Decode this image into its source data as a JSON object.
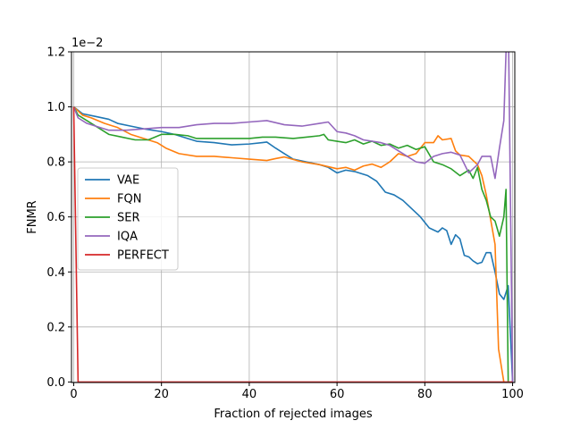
{
  "chart_data": {
    "type": "line",
    "title": "",
    "xlabel": "Fraction of rejected images",
    "ylabel": "FNMR",
    "offset_text": "1e−2",
    "xlim": [
      -0.5,
      100.5
    ],
    "ylim": [
      -0.002,
      1.2
    ],
    "xticks": [
      0,
      20,
      40,
      60,
      80,
      100
    ],
    "yticks": [
      0.0,
      0.2,
      0.4,
      0.6,
      0.8,
      1.0,
      1.2
    ],
    "xtick_labels": [
      "0",
      "20",
      "40",
      "60",
      "80",
      "100"
    ],
    "ytick_labels": [
      "0.0",
      "0.2",
      "0.4",
      "0.6",
      "0.8",
      "1.0",
      "1.2"
    ],
    "grid": true,
    "legend_position": "center-left",
    "series": [
      {
        "name": "VAE",
        "color": "#1f77b4",
        "points": [
          [
            0,
            1.0
          ],
          [
            2,
            0.975
          ],
          [
            5,
            0.965
          ],
          [
            8,
            0.955
          ],
          [
            10,
            0.94
          ],
          [
            13,
            0.93
          ],
          [
            16,
            0.92
          ],
          [
            20,
            0.91
          ],
          [
            23,
            0.9
          ],
          [
            26,
            0.885
          ],
          [
            28,
            0.875
          ],
          [
            32,
            0.87
          ],
          [
            36,
            0.862
          ],
          [
            40,
            0.865
          ],
          [
            43,
            0.87
          ],
          [
            44,
            0.872
          ],
          [
            46,
            0.85
          ],
          [
            48,
            0.83
          ],
          [
            50,
            0.81
          ],
          [
            53,
            0.8
          ],
          [
            56,
            0.79
          ],
          [
            58,
            0.78
          ],
          [
            60,
            0.76
          ],
          [
            62,
            0.77
          ],
          [
            64,
            0.765
          ],
          [
            67,
            0.75
          ],
          [
            69,
            0.73
          ],
          [
            71,
            0.69
          ],
          [
            73,
            0.68
          ],
          [
            75,
            0.66
          ],
          [
            77,
            0.63
          ],
          [
            79,
            0.6
          ],
          [
            81,
            0.56
          ],
          [
            83,
            0.545
          ],
          [
            84,
            0.56
          ],
          [
            85,
            0.55
          ],
          [
            86,
            0.5
          ],
          [
            87,
            0.535
          ],
          [
            88,
            0.52
          ],
          [
            89,
            0.46
          ],
          [
            90,
            0.455
          ],
          [
            91,
            0.44
          ],
          [
            92,
            0.43
          ],
          [
            93,
            0.435
          ],
          [
            94,
            0.47
          ],
          [
            95,
            0.47
          ],
          [
            96,
            0.4
          ],
          [
            97,
            0.32
          ],
          [
            98,
            0.3
          ],
          [
            99,
            0.35
          ],
          [
            100,
            0.0
          ]
        ]
      },
      {
        "name": "FQN",
        "color": "#ff7f0e",
        "points": [
          [
            0,
            1.0
          ],
          [
            2,
            0.97
          ],
          [
            4,
            0.96
          ],
          [
            7,
            0.94
          ],
          [
            10,
            0.925
          ],
          [
            13,
            0.9
          ],
          [
            16,
            0.885
          ],
          [
            19,
            0.87
          ],
          [
            21,
            0.85
          ],
          [
            24,
            0.83
          ],
          [
            28,
            0.82
          ],
          [
            32,
            0.82
          ],
          [
            36,
            0.815
          ],
          [
            40,
            0.81
          ],
          [
            44,
            0.805
          ],
          [
            46,
            0.812
          ],
          [
            48,
            0.818
          ],
          [
            52,
            0.8
          ],
          [
            56,
            0.79
          ],
          [
            60,
            0.775
          ],
          [
            62,
            0.78
          ],
          [
            64,
            0.77
          ],
          [
            66,
            0.785
          ],
          [
            68,
            0.792
          ],
          [
            70,
            0.78
          ],
          [
            72,
            0.8
          ],
          [
            74,
            0.83
          ],
          [
            76,
            0.82
          ],
          [
            78,
            0.83
          ],
          [
            80,
            0.87
          ],
          [
            82,
            0.87
          ],
          [
            83,
            0.895
          ],
          [
            84,
            0.88
          ],
          [
            86,
            0.885
          ],
          [
            87,
            0.84
          ],
          [
            88,
            0.825
          ],
          [
            90,
            0.82
          ],
          [
            91,
            0.805
          ],
          [
            92,
            0.79
          ],
          [
            93,
            0.75
          ],
          [
            94,
            0.68
          ],
          [
            95,
            0.59
          ],
          [
            96,
            0.5
          ],
          [
            96.8,
            0.12
          ],
          [
            98,
            0.0
          ]
        ]
      },
      {
        "name": "SER",
        "color": "#2ca02c",
        "points": [
          [
            0,
            1.0
          ],
          [
            1,
            0.97
          ],
          [
            3,
            0.95
          ],
          [
            5,
            0.93
          ],
          [
            8,
            0.9
          ],
          [
            11,
            0.89
          ],
          [
            14,
            0.88
          ],
          [
            17,
            0.88
          ],
          [
            20,
            0.9
          ],
          [
            23,
            0.9
          ],
          [
            26,
            0.895
          ],
          [
            28,
            0.885
          ],
          [
            32,
            0.885
          ],
          [
            36,
            0.885
          ],
          [
            40,
            0.885
          ],
          [
            43,
            0.89
          ],
          [
            46,
            0.89
          ],
          [
            50,
            0.885
          ],
          [
            53,
            0.89
          ],
          [
            56,
            0.895
          ],
          [
            57,
            0.9
          ],
          [
            58,
            0.88
          ],
          [
            60,
            0.875
          ],
          [
            62,
            0.87
          ],
          [
            64,
            0.88
          ],
          [
            66,
            0.865
          ],
          [
            68,
            0.875
          ],
          [
            70,
            0.86
          ],
          [
            72,
            0.865
          ],
          [
            74,
            0.85
          ],
          [
            76,
            0.86
          ],
          [
            78,
            0.845
          ],
          [
            80,
            0.855
          ],
          [
            82,
            0.8
          ],
          [
            84,
            0.79
          ],
          [
            86,
            0.775
          ],
          [
            88,
            0.75
          ],
          [
            90,
            0.77
          ],
          [
            91,
            0.74
          ],
          [
            92,
            0.78
          ],
          [
            93,
            0.7
          ],
          [
            94,
            0.66
          ],
          [
            95,
            0.6
          ],
          [
            96,
            0.585
          ],
          [
            97,
            0.53
          ],
          [
            98,
            0.6
          ],
          [
            98.5,
            0.7
          ],
          [
            99,
            0.0
          ]
        ]
      },
      {
        "name": "IQA",
        "color": "#9467bd",
        "points": [
          [
            0,
            1.0
          ],
          [
            1,
            0.96
          ],
          [
            3,
            0.94
          ],
          [
            5,
            0.93
          ],
          [
            8,
            0.915
          ],
          [
            12,
            0.915
          ],
          [
            16,
            0.92
          ],
          [
            20,
            0.925
          ],
          [
            24,
            0.925
          ],
          [
            28,
            0.935
          ],
          [
            32,
            0.94
          ],
          [
            36,
            0.94
          ],
          [
            40,
            0.945
          ],
          [
            44,
            0.95
          ],
          [
            48,
            0.935
          ],
          [
            52,
            0.93
          ],
          [
            56,
            0.94
          ],
          [
            58,
            0.945
          ],
          [
            60,
            0.91
          ],
          [
            62,
            0.905
          ],
          [
            64,
            0.895
          ],
          [
            66,
            0.88
          ],
          [
            68,
            0.875
          ],
          [
            70,
            0.87
          ],
          [
            72,
            0.86
          ],
          [
            74,
            0.84
          ],
          [
            76,
            0.82
          ],
          [
            78,
            0.8
          ],
          [
            80,
            0.795
          ],
          [
            82,
            0.82
          ],
          [
            84,
            0.83
          ],
          [
            86,
            0.835
          ],
          [
            88,
            0.825
          ],
          [
            90,
            0.76
          ],
          [
            92,
            0.79
          ],
          [
            93,
            0.82
          ],
          [
            94,
            0.82
          ],
          [
            95,
            0.82
          ],
          [
            96,
            0.74
          ],
          [
            97,
            0.85
          ],
          [
            98,
            0.95
          ],
          [
            98.5,
            1.2
          ],
          [
            99,
            1.35
          ],
          [
            100,
            0.0
          ]
        ]
      },
      {
        "name": "PERFECT",
        "color": "#d62728",
        "points": [
          [
            0,
            1.0
          ],
          [
            1,
            0.0
          ],
          [
            100,
            0.0
          ]
        ]
      }
    ]
  }
}
